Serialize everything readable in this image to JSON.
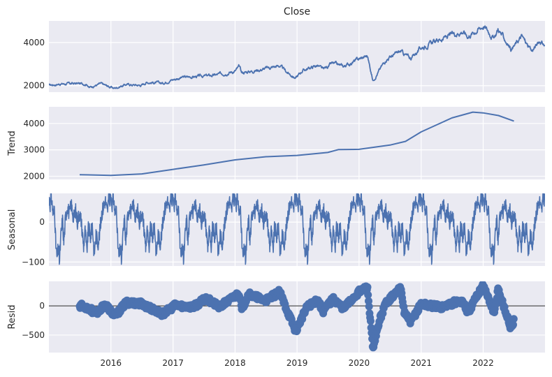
{
  "chart_data": {
    "type": "line",
    "title": "Close",
    "x_range": [
      "2015-01-01",
      "2022-12-31"
    ],
    "x_ticks": [
      "2016",
      "2017",
      "2018",
      "2019",
      "2020",
      "2021",
      "2022"
    ],
    "grid": true,
    "series_color": "#4c72b0",
    "panels": [
      {
        "name": "close",
        "ylabel": "",
        "ylim": [
          1700,
          5000
        ],
        "yticks": [
          {
            "value": 2000,
            "label": "2000"
          },
          {
            "value": 4000,
            "label": "4000"
          }
        ],
        "points": [
          [
            "2015-01-01",
            2020
          ],
          [
            "2015-03-01",
            2080
          ],
          [
            "2015-06-01",
            2100
          ],
          [
            "2015-08-15",
            2080
          ],
          [
            "2015-08-25",
            1920
          ],
          [
            "2015-11-01",
            2090
          ],
          [
            "2016-01-20",
            1880
          ],
          [
            "2016-04-01",
            2060
          ],
          [
            "2016-06-27",
            2020
          ],
          [
            "2016-08-01",
            2170
          ],
          [
            "2016-11-01",
            2110
          ],
          [
            "2016-12-15",
            2260
          ],
          [
            "2017-03-01",
            2390
          ],
          [
            "2017-06-01",
            2430
          ],
          [
            "2017-09-01",
            2480
          ],
          [
            "2017-12-31",
            2680
          ],
          [
            "2018-01-26",
            2870
          ],
          [
            "2018-02-09",
            2600
          ],
          [
            "2018-06-01",
            2750
          ],
          [
            "2018-09-20",
            2930
          ],
          [
            "2018-10-30",
            2640
          ],
          [
            "2018-12-24",
            2350
          ],
          [
            "2019-02-01",
            2700
          ],
          [
            "2019-04-30",
            2940
          ],
          [
            "2019-06-03",
            2740
          ],
          [
            "2019-07-26",
            3020
          ],
          [
            "2019-10-02",
            2890
          ],
          [
            "2019-12-31",
            3230
          ],
          [
            "2020-02-19",
            3390
          ],
          [
            "2020-03-23",
            2240
          ],
          [
            "2020-06-08",
            3230
          ],
          [
            "2020-09-02",
            3580
          ],
          [
            "2020-10-30",
            3270
          ],
          [
            "2020-12-31",
            3760
          ],
          [
            "2021-05-01",
            4180
          ],
          [
            "2021-09-01",
            4530
          ],
          [
            "2021-10-04",
            4300
          ],
          [
            "2021-12-31",
            4770
          ],
          [
            "2022-01-03",
            4800
          ],
          [
            "2022-03-08",
            4170
          ],
          [
            "2022-03-29",
            4630
          ],
          [
            "2022-06-16",
            3670
          ],
          [
            "2022-08-16",
            4300
          ],
          [
            "2022-10-12",
            3580
          ],
          [
            "2022-12-01",
            4080
          ],
          [
            "2022-12-31",
            3840
          ]
        ]
      },
      {
        "name": "trend",
        "ylabel": "Trend",
        "ylim": [
          1880,
          4630
        ],
        "yticks": [
          {
            "value": 2000,
            "label": "2000"
          },
          {
            "value": 3000,
            "label": "3000"
          },
          {
            "value": 4000,
            "label": "4000"
          }
        ],
        "points": [
          [
            "2015-07-01",
            2060
          ],
          [
            "2016-01-01",
            2030
          ],
          [
            "2016-07-01",
            2090
          ],
          [
            "2017-01-01",
            2260
          ],
          [
            "2017-07-01",
            2430
          ],
          [
            "2018-01-01",
            2620
          ],
          [
            "2018-07-01",
            2740
          ],
          [
            "2019-01-01",
            2790
          ],
          [
            "2019-07-01",
            2900
          ],
          [
            "2019-09-01",
            3010
          ],
          [
            "2020-01-01",
            3020
          ],
          [
            "2020-07-01",
            3180
          ],
          [
            "2020-10-01",
            3320
          ],
          [
            "2021-01-01",
            3680
          ],
          [
            "2021-07-01",
            4210
          ],
          [
            "2021-11-01",
            4430
          ],
          [
            "2022-01-01",
            4400
          ],
          [
            "2022-04-01",
            4300
          ],
          [
            "2022-07-01",
            4090
          ]
        ]
      },
      {
        "name": "seasonal",
        "ylabel": "Seasonal",
        "ylim": [
          -110,
          72
        ],
        "yticks": [
          {
            "value": 0,
            "label": "0"
          },
          {
            "value": -100,
            "label": "−100"
          }
        ],
        "profile": [
          [
            0.0,
            60
          ],
          [
            0.02,
            45
          ],
          [
            0.04,
            64
          ],
          [
            0.07,
            15
          ],
          [
            0.09,
            40
          ],
          [
            0.11,
            -55
          ],
          [
            0.13,
            -90
          ],
          [
            0.155,
            -60
          ],
          [
            0.17,
            -100
          ],
          [
            0.195,
            -30
          ],
          [
            0.22,
            5
          ],
          [
            0.24,
            -50
          ],
          [
            0.27,
            15
          ],
          [
            0.3,
            40
          ],
          [
            0.33,
            20
          ],
          [
            0.36,
            45
          ],
          [
            0.4,
            10
          ],
          [
            0.43,
            30
          ],
          [
            0.46,
            0
          ],
          [
            0.49,
            25
          ],
          [
            0.52,
            5
          ],
          [
            0.56,
            -60
          ],
          [
            0.585,
            -20
          ],
          [
            0.61,
            -75
          ],
          [
            0.64,
            -10
          ],
          [
            0.67,
            -40
          ],
          [
            0.7,
            -5
          ],
          [
            0.73,
            -80
          ],
          [
            0.76,
            -30
          ],
          [
            0.79,
            -55
          ],
          [
            0.82,
            -25
          ],
          [
            0.85,
            20
          ],
          [
            0.88,
            40
          ],
          [
            0.91,
            55
          ],
          [
            0.94,
            25
          ],
          [
            0.97,
            60
          ],
          [
            1.0,
            60
          ]
        ]
      },
      {
        "name": "resid",
        "ylabel": "Resid",
        "ylim": [
          -800,
          420
        ],
        "yticks": [
          {
            "value": 0,
            "label": "0"
          },
          {
            "value": -500,
            "label": "−500"
          }
        ],
        "baseline": 0,
        "points": [
          [
            "2015-07-01",
            10
          ],
          [
            "2015-08-26",
            -40
          ],
          [
            "2015-10-01",
            -130
          ],
          [
            "2015-12-01",
            20
          ],
          [
            "2016-01-25",
            -180
          ],
          [
            "2016-04-01",
            60
          ],
          [
            "2016-06-27",
            40
          ],
          [
            "2016-09-01",
            -60
          ],
          [
            "2016-11-01",
            -140
          ],
          [
            "2017-01-15",
            10
          ],
          [
            "2017-05-01",
            -20
          ],
          [
            "2017-07-15",
            130
          ],
          [
            "2017-10-01",
            -20
          ],
          [
            "2018-01-26",
            220
          ],
          [
            "2018-02-09",
            -70
          ],
          [
            "2018-03-20",
            200
          ],
          [
            "2018-07-01",
            90
          ],
          [
            "2018-09-20",
            240
          ],
          [
            "2018-11-01",
            -60
          ],
          [
            "2018-12-24",
            -430
          ],
          [
            "2019-03-01",
            -20
          ],
          [
            "2019-05-01",
            110
          ],
          [
            "2019-06-03",
            -90
          ],
          [
            "2019-08-01",
            120
          ],
          [
            "2019-10-02",
            -40
          ],
          [
            "2019-12-31",
            240
          ],
          [
            "2020-02-19",
            320
          ],
          [
            "2020-03-23",
            -760
          ],
          [
            "2020-05-01",
            -240
          ],
          [
            "2020-06-08",
            60
          ],
          [
            "2020-09-02",
            300
          ],
          [
            "2020-09-23",
            -100
          ],
          [
            "2020-10-30",
            -280
          ],
          [
            "2020-12-31",
            30
          ],
          [
            "2021-05-01",
            -20
          ],
          [
            "2021-07-15",
            60
          ],
          [
            "2021-09-01",
            80
          ],
          [
            "2021-10-04",
            -120
          ],
          [
            "2021-12-31",
            370
          ],
          [
            "2022-01-05",
            320
          ],
          [
            "2022-03-08",
            -130
          ],
          [
            "2022-03-29",
            300
          ],
          [
            "2022-06-16",
            -410
          ],
          [
            "2022-07-01",
            -250
          ]
        ]
      }
    ]
  }
}
